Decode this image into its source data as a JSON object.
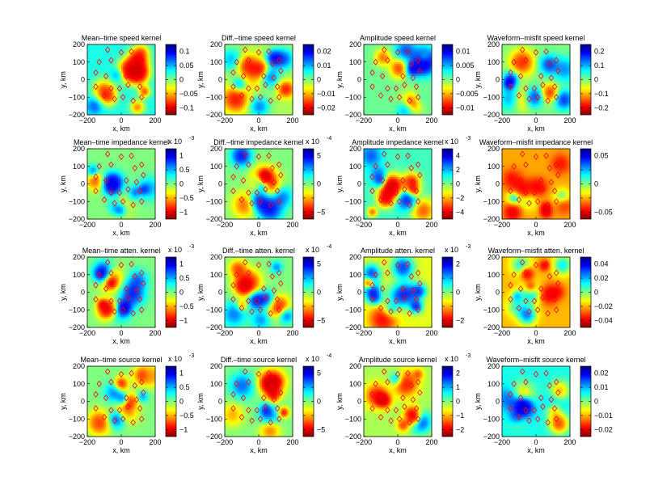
{
  "figure": {
    "xlabel": "x, km",
    "ylabel": "y, km"
  },
  "colors": {
    "colormap": [
      "#800000",
      "#ff0000",
      "#ff8000",
      "#ffff00",
      "#80ff80",
      "#00ffff",
      "#0080ff",
      "#0000ff",
      "#000080"
    ],
    "marker": "#ff0000",
    "axis": "#000000"
  },
  "chart_data": {
    "type": "heatmap",
    "grid": {
      "rows": 4,
      "cols": 4
    },
    "axes": {
      "xlim": [
        -200,
        200
      ],
      "ylim": [
        -200,
        200
      ],
      "xticks": [
        -200,
        0,
        200
      ],
      "yticks": [
        200,
        100,
        0,
        -100,
        -200
      ],
      "xlabel": "x, km",
      "ylabel": "y, km"
    },
    "stations": [
      [
        -80,
        170
      ],
      [
        0,
        155
      ],
      [
        60,
        160
      ],
      [
        120,
        110
      ],
      [
        130,
        50
      ],
      [
        -130,
        100
      ],
      [
        -60,
        110
      ],
      [
        80,
        90
      ],
      [
        -150,
        40
      ],
      [
        -90,
        20
      ],
      [
        30,
        20
      ],
      [
        90,
        10
      ],
      [
        -150,
        -40
      ],
      [
        -60,
        -50
      ],
      [
        40,
        -30
      ],
      [
        110,
        -40
      ],
      [
        -100,
        -90
      ],
      [
        -40,
        -110
      ],
      [
        10,
        -100
      ],
      [
        70,
        -120
      ],
      [
        120,
        -100
      ],
      [
        -10,
        -50
      ]
    ],
    "panels": [
      {
        "title": "Mean–time speed kernel",
        "multiplier": "",
        "cticks": [
          "0.1",
          "0.05",
          "0",
          "−0.05",
          "−0.1"
        ],
        "seed": 11,
        "bias": 0.25
      },
      {
        "title": "Diff.–time speed kernel",
        "multiplier": "",
        "cticks": [
          "0.02",
          "0.01",
          "0",
          "−0.01",
          "−0.02"
        ],
        "seed": 23,
        "bias": -0.1
      },
      {
        "title": "Amplitude speed kernel",
        "multiplier": "",
        "cticks": [
          "0.01",
          "0.005",
          "0",
          "−0.005",
          "−0.01"
        ],
        "seed": 37,
        "bias": 0.05
      },
      {
        "title": "Waveform–misfit speed kernel",
        "multiplier": "",
        "cticks": [
          "0.2",
          "0.1",
          "0",
          "−0.1",
          "−0.2"
        ],
        "seed": 41,
        "bias": 0
      },
      {
        "title": "Mean–time impedance kernel",
        "multiplier": "x 10",
        "exponent": "-3",
        "cticks": [
          "1",
          "0.5",
          "0",
          "−0.5",
          "−1"
        ],
        "seed": 53,
        "bias": 0
      },
      {
        "title": "Diff.–time impedance kernel",
        "multiplier": "x 10",
        "exponent": "-4",
        "cticks": [
          "5",
          "",
          "0",
          "",
          "−5"
        ],
        "seed": 61,
        "bias": 0
      },
      {
        "title": "Amplitude impedance kernel",
        "multiplier": "x 10",
        "exponent": "-3",
        "cticks": [
          "4",
          "2",
          "0",
          "−2",
          "−4"
        ],
        "seed": 71,
        "bias": 0.15
      },
      {
        "title": "Waveform–misfit impedance kernel",
        "multiplier": "",
        "cticks": [
          "0.05",
          "",
          "0",
          "",
          "−0.05"
        ],
        "seed": 83,
        "bias": -0.55
      },
      {
        "title": "Mean–time atten. kernel",
        "multiplier": "x 10",
        "exponent": "-3",
        "cticks": [
          "1",
          "0.5",
          "0",
          "−0.5",
          "−1"
        ],
        "seed": 97,
        "bias": 0
      },
      {
        "title": "Diff.–time atten. kernel",
        "multiplier": "x 10",
        "exponent": "-4",
        "cticks": [
          "5",
          "",
          "0",
          "",
          "−5"
        ],
        "seed": 101,
        "bias": 0
      },
      {
        "title": "Amplitude atten. kernel",
        "multiplier": "x 10",
        "exponent": "-3",
        "cticks": [
          "2",
          "",
          "0",
          "",
          "−2"
        ],
        "seed": 109,
        "bias": -0.25
      },
      {
        "title": "Waveform–misfit atten. kernel",
        "multiplier": "",
        "cticks": [
          "0.04",
          "0.02",
          "0",
          "−0.02",
          "−0.04"
        ],
        "seed": 113,
        "bias": -0.5
      },
      {
        "title": "Mean–time source kernel",
        "multiplier": "x 10",
        "exponent": "-3",
        "cticks": [
          "1",
          "0.5",
          "0",
          "−0.5",
          "−1"
        ],
        "seed": 127,
        "bias": 0
      },
      {
        "title": "Diff.–time source kernel",
        "multiplier": "x 10",
        "exponent": "-4",
        "cticks": [
          "5",
          "",
          "0",
          "",
          "−5"
        ],
        "seed": 131,
        "bias": 0
      },
      {
        "title": "Amplitude source kernel",
        "multiplier": "x 10",
        "exponent": "-3",
        "cticks": [
          "2",
          "1",
          "0",
          "−1",
          "−2"
        ],
        "seed": 137,
        "bias": -0.1
      },
      {
        "title": "Waveform–misfit source kernel",
        "multiplier": "",
        "cticks": [
          "0.02",
          "0.01",
          "0",
          "−0.01",
          "−0.02"
        ],
        "seed": 139,
        "bias": 0.25
      }
    ]
  }
}
